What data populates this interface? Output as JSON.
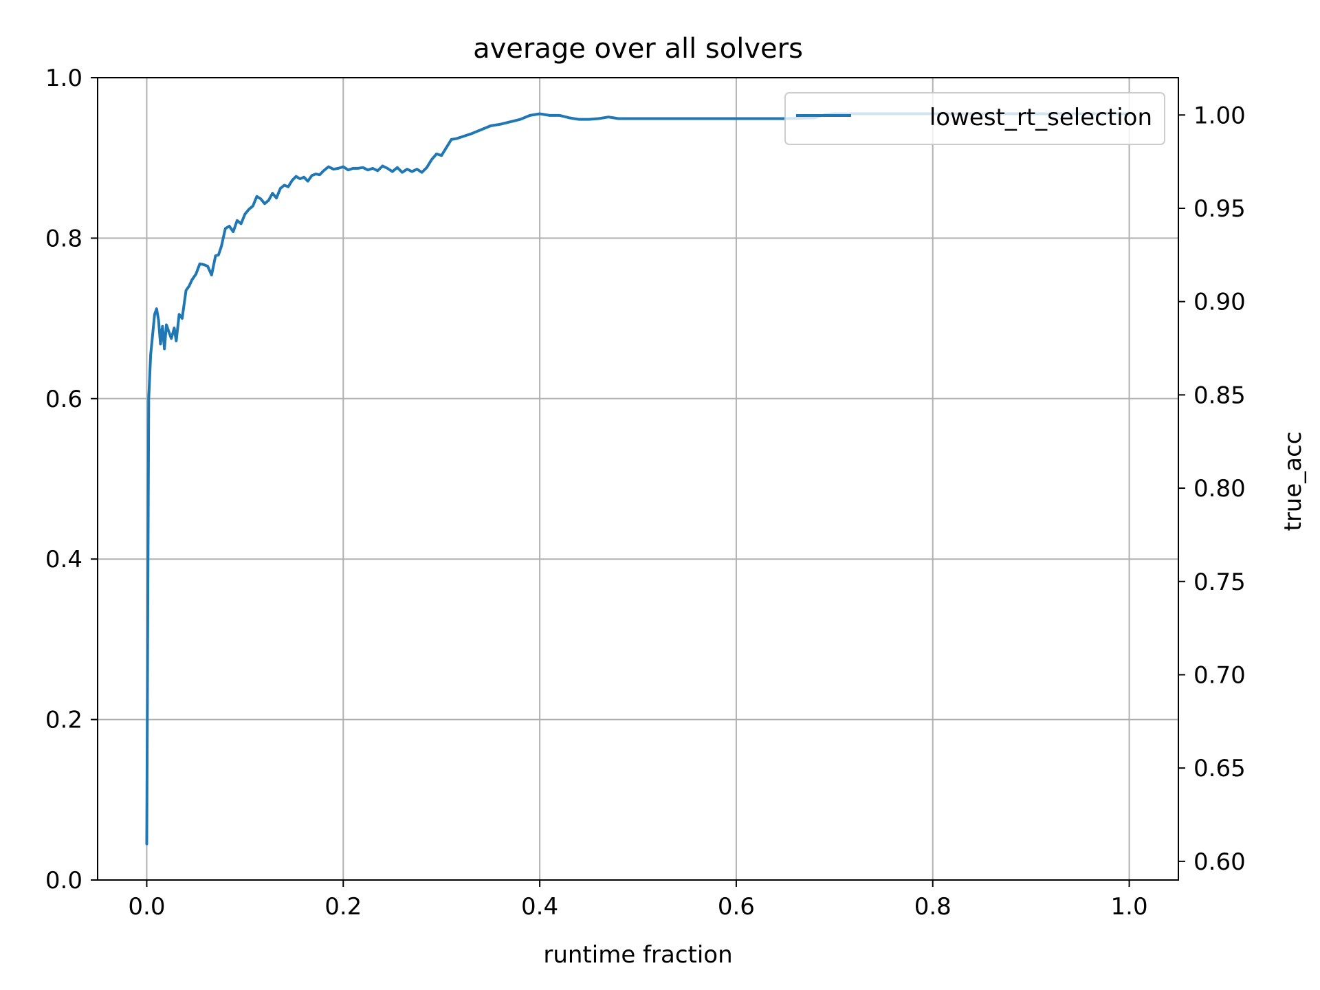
{
  "chart_data": {
    "type": "line",
    "title": "average over all solvers",
    "xlabel": "runtime fraction",
    "ylabel": "",
    "y2label": "true_acc",
    "y2label_color": "#ff0000",
    "series_color": "#1f77b4",
    "grid": true,
    "legend_position": "top-right",
    "xlim": [
      -0.05,
      1.05
    ],
    "ylim": [
      0.0,
      1.0
    ],
    "y2lim": [
      0.59,
      1.02
    ],
    "xticks": [
      "0.0",
      "0.2",
      "0.4",
      "0.6",
      "0.8",
      "1.0"
    ],
    "yticks": [
      "0.0",
      "0.2",
      "0.4",
      "0.6",
      "0.8",
      "1.0"
    ],
    "y2ticks": [
      "0.60",
      "0.65",
      "0.70",
      "0.75",
      "0.80",
      "0.85",
      "0.90",
      "0.95",
      "1.00"
    ],
    "series": [
      {
        "name": "lowest_rt_selection",
        "x": [
          0.0,
          0.002,
          0.004,
          0.006,
          0.008,
          0.01,
          0.012,
          0.014,
          0.016,
          0.018,
          0.02,
          0.022,
          0.025,
          0.028,
          0.03,
          0.033,
          0.036,
          0.04,
          0.043,
          0.046,
          0.05,
          0.054,
          0.058,
          0.062,
          0.066,
          0.07,
          0.073,
          0.076,
          0.08,
          0.084,
          0.088,
          0.092,
          0.096,
          0.1,
          0.104,
          0.108,
          0.112,
          0.116,
          0.12,
          0.124,
          0.128,
          0.132,
          0.136,
          0.14,
          0.144,
          0.148,
          0.152,
          0.156,
          0.16,
          0.164,
          0.168,
          0.172,
          0.176,
          0.18,
          0.185,
          0.19,
          0.195,
          0.2,
          0.205,
          0.21,
          0.215,
          0.22,
          0.225,
          0.23,
          0.235,
          0.24,
          0.245,
          0.25,
          0.255,
          0.26,
          0.265,
          0.27,
          0.275,
          0.28,
          0.285,
          0.29,
          0.295,
          0.3,
          0.305,
          0.31,
          0.315,
          0.32,
          0.33,
          0.34,
          0.35,
          0.36,
          0.37,
          0.38,
          0.39,
          0.4,
          0.41,
          0.42,
          0.43,
          0.44,
          0.45,
          0.46,
          0.47,
          0.48,
          0.5,
          0.55,
          0.6,
          0.65,
          0.68,
          0.69,
          0.7,
          1.0
        ],
        "y": [
          0.045,
          0.6,
          0.655,
          0.68,
          0.705,
          0.712,
          0.698,
          0.668,
          0.69,
          0.662,
          0.692,
          0.685,
          0.675,
          0.688,
          0.672,
          0.705,
          0.7,
          0.735,
          0.74,
          0.748,
          0.755,
          0.768,
          0.767,
          0.765,
          0.754,
          0.778,
          0.779,
          0.79,
          0.812,
          0.815,
          0.808,
          0.822,
          0.818,
          0.83,
          0.836,
          0.84,
          0.852,
          0.849,
          0.843,
          0.847,
          0.856,
          0.85,
          0.862,
          0.866,
          0.864,
          0.872,
          0.877,
          0.874,
          0.876,
          0.871,
          0.878,
          0.88,
          0.879,
          0.884,
          0.889,
          0.886,
          0.887,
          0.889,
          0.885,
          0.887,
          0.887,
          0.888,
          0.885,
          0.887,
          0.884,
          0.89,
          0.887,
          0.883,
          0.888,
          0.882,
          0.886,
          0.883,
          0.886,
          0.882,
          0.888,
          0.898,
          0.905,
          0.903,
          0.913,
          0.923,
          0.924,
          0.926,
          0.93,
          0.935,
          0.94,
          0.942,
          0.945,
          0.948,
          0.953,
          0.955,
          0.953,
          0.953,
          0.95,
          0.948,
          0.948,
          0.949,
          0.951,
          0.949,
          0.949,
          0.949,
          0.949,
          0.949,
          0.95,
          0.954,
          0.955,
          0.955
        ]
      }
    ]
  }
}
